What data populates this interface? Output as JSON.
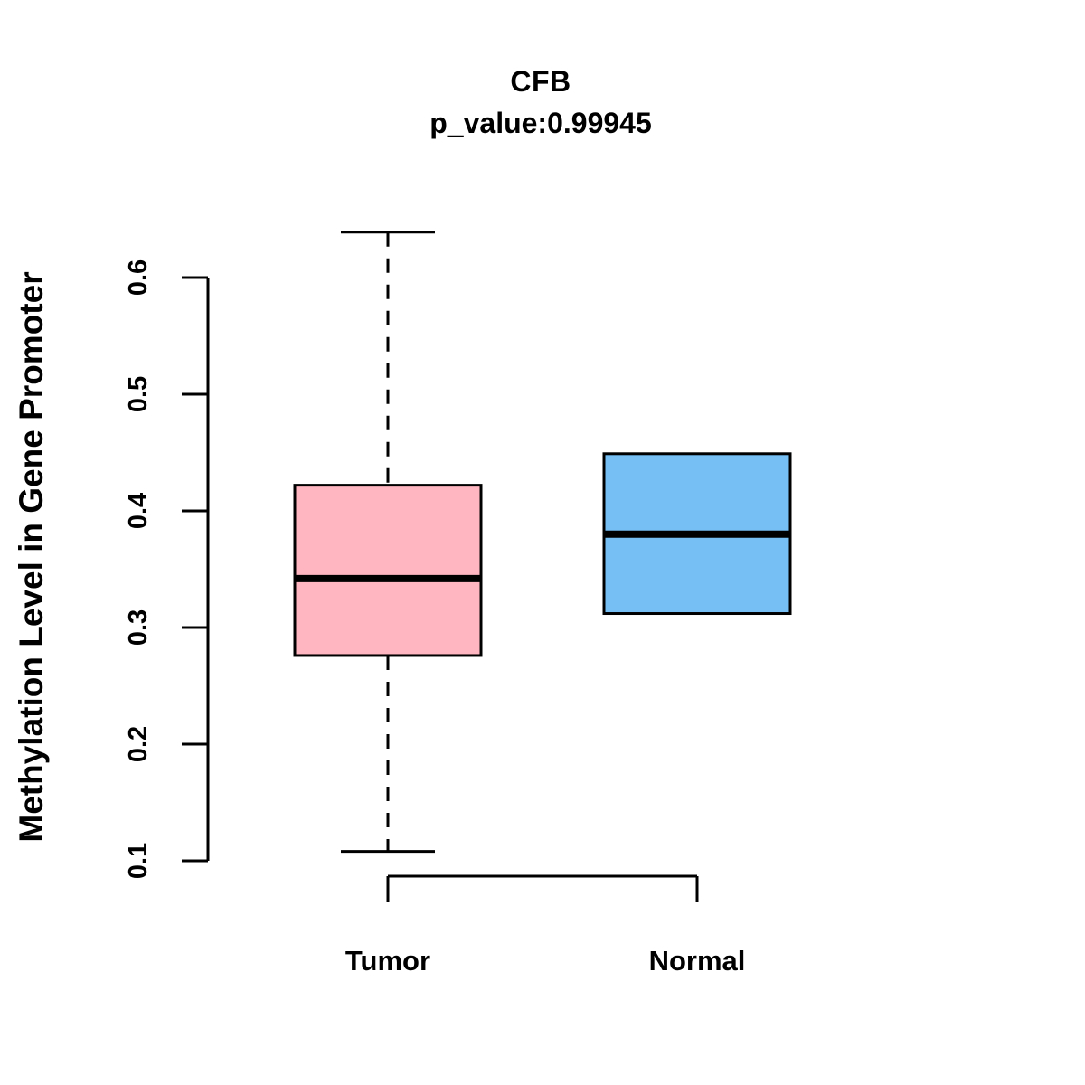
{
  "titles": {
    "main": "CFB",
    "sub": "p_value:0.99945"
  },
  "axes": {
    "y_label": "Methylation Level in Gene Promoter",
    "y_tick_labels": [
      "0.1",
      "0.2",
      "0.3",
      "0.4",
      "0.5",
      "0.6"
    ],
    "x_categories": [
      "Tumor",
      "Normal"
    ]
  },
  "colors": {
    "tumor_fill": "#FFB6C1",
    "normal_fill": "#75BFF5",
    "stroke": "#000000",
    "background": "#FFFFFF"
  },
  "chart_data": {
    "type": "boxplot",
    "title": "CFB",
    "subtitle": "p_value:0.99945",
    "ylabel": "Methylation Level in Gene Promoter",
    "xlabel": "",
    "ylim": [
      0.1,
      0.64
    ],
    "yticks": [
      0.1,
      0.2,
      0.3,
      0.4,
      0.5,
      0.6
    ],
    "grid": "off",
    "legend": "none",
    "categories": [
      "Tumor",
      "Normal"
    ],
    "series": [
      {
        "name": "Tumor",
        "color": "#FFB6C1",
        "whisker_low": 0.108,
        "q1": 0.276,
        "median": 0.342,
        "q3": 0.422,
        "whisker_high": 0.639,
        "whisker_style": "dashed"
      },
      {
        "name": "Normal",
        "color": "#75BFF5",
        "whisker_low": 0.312,
        "q1": 0.312,
        "median": 0.38,
        "q3": 0.449,
        "whisker_high": 0.449,
        "whisker_style": "dashed"
      }
    ]
  }
}
